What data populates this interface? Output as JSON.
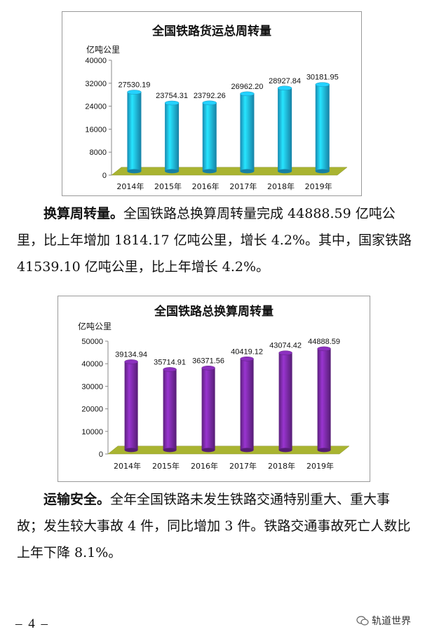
{
  "chart_data": [
    {
      "type": "bar",
      "title": "全国铁路货运总周转量",
      "ylabel": "亿吨公里",
      "xlabel": "",
      "categories": [
        "2014年",
        "2015年",
        "2016年",
        "2017年",
        "2018年",
        "2019年"
      ],
      "values": [
        27530.19,
        23754.31,
        23792.26,
        26962.2,
        28927.84,
        30181.95
      ],
      "value_labels": [
        "27530.19",
        "23754.31",
        "23792.26",
        "26962.20",
        "28927.84",
        "30181.95"
      ],
      "yticks": [
        "0",
        "8000",
        "16000",
        "24000",
        "32000",
        "40000"
      ],
      "ylim": [
        0,
        40000
      ],
      "grid": false,
      "bar_color": "#1fb7ea",
      "floor_color": "#a9b431"
    },
    {
      "type": "bar",
      "title": "全国铁路总换算周转量",
      "ylabel": "亿吨公里",
      "xlabel": "",
      "categories": [
        "2014年",
        "2015年",
        "2016年",
        "2017年",
        "2018年",
        "2019年"
      ],
      "values": [
        39134.94,
        35714.91,
        36371.56,
        40419.12,
        43074.42,
        44888.59
      ],
      "value_labels": [
        "39134.94",
        "35714.91",
        "36371.56",
        "40419.12",
        "43074.42",
        "44888.59"
      ],
      "yticks": [
        "0",
        "10000",
        "20000",
        "30000",
        "40000",
        "50000"
      ],
      "ylim": [
        0,
        50000
      ],
      "grid": false,
      "bar_color": "#7a2aa6",
      "floor_color": "#a9b431"
    }
  ],
  "paragraph1": {
    "lead": "换算周转量。",
    "body": "全国铁路总换算周转量完成 44888.59 亿吨公里，比上年增加 1814.17 亿吨公里，增长 4.2%。其中，国家铁路 41539.10 亿吨公里，比上年增长 4.2%。"
  },
  "paragraph2": {
    "lead": "运输安全。",
    "body": "全年全国铁路未发生铁路交通特别重大、重大事故；发生较大事故 4 件，同比增加 3 件。铁路交通事故死亡人数比上年下降 8.1%。"
  },
  "footer": {
    "page_number": "– 4 –",
    "watermark_text": "轨道世界",
    "watermark_icon": "wechat-icon"
  }
}
